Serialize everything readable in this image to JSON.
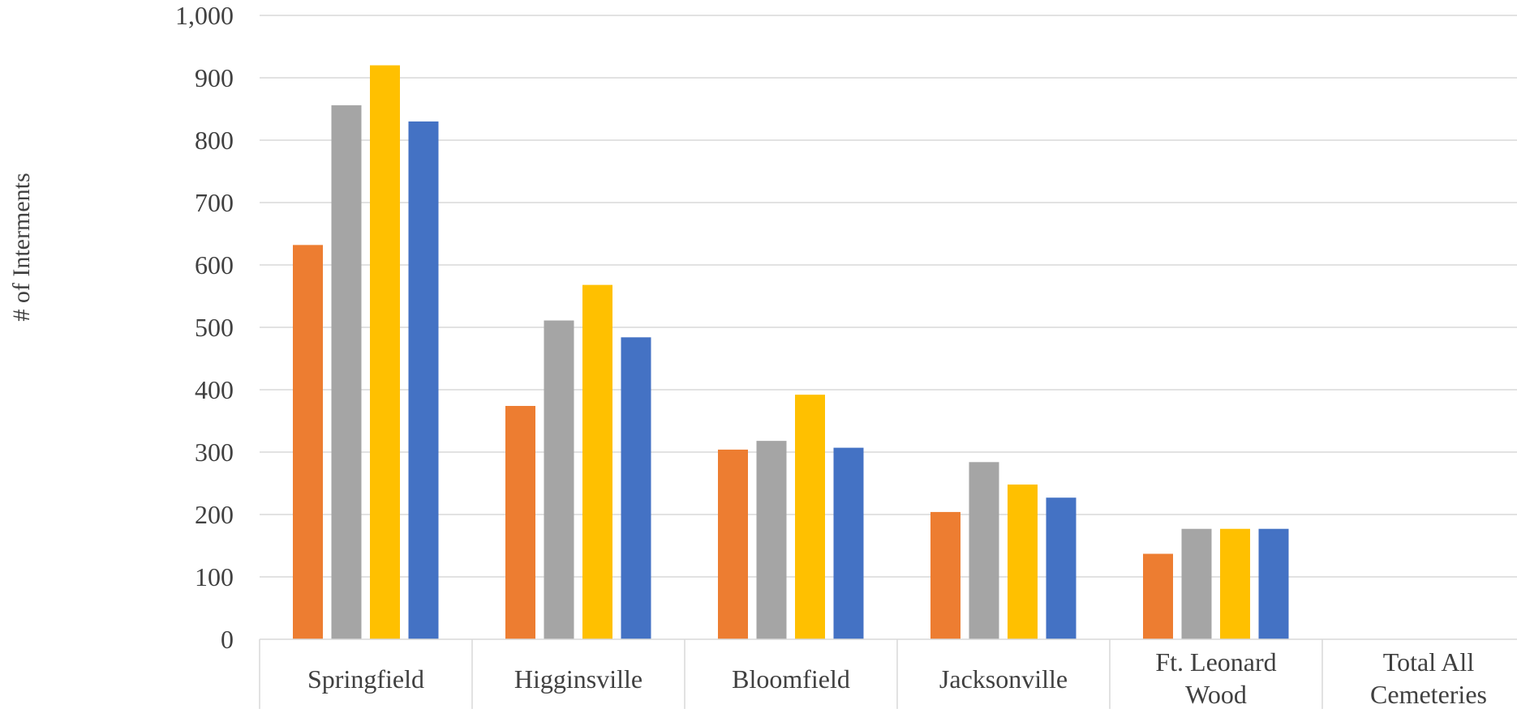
{
  "chart_data": {
    "type": "bar",
    "title": "",
    "xlabel": "",
    "ylabel": "# of Interments",
    "ylim": [
      0,
      1000
    ],
    "yticks": [
      "0",
      "100",
      "200",
      "300",
      "400",
      "500",
      "600",
      "700",
      "800",
      "900",
      "1,000"
    ],
    "grid": true,
    "categories": [
      [
        "Springfield"
      ],
      [
        "Higginsville"
      ],
      [
        "Bloomfield"
      ],
      [
        "Jacksonville"
      ],
      [
        "Ft. Leonard",
        "Wood"
      ],
      [
        "Total All",
        "Cemeteries"
      ]
    ],
    "series": [
      {
        "color": "#ED7D31",
        "values": [
          632,
          374,
          304,
          204,
          137,
          null
        ]
      },
      {
        "color": "#A5A5A5",
        "values": [
          856,
          511,
          318,
          284,
          177,
          null
        ]
      },
      {
        "color": "#FFC000",
        "values": [
          920,
          568,
          392,
          248,
          177,
          null
        ]
      },
      {
        "color": "#4472C4",
        "values": [
          830,
          484,
          307,
          227,
          177,
          null
        ]
      }
    ]
  }
}
